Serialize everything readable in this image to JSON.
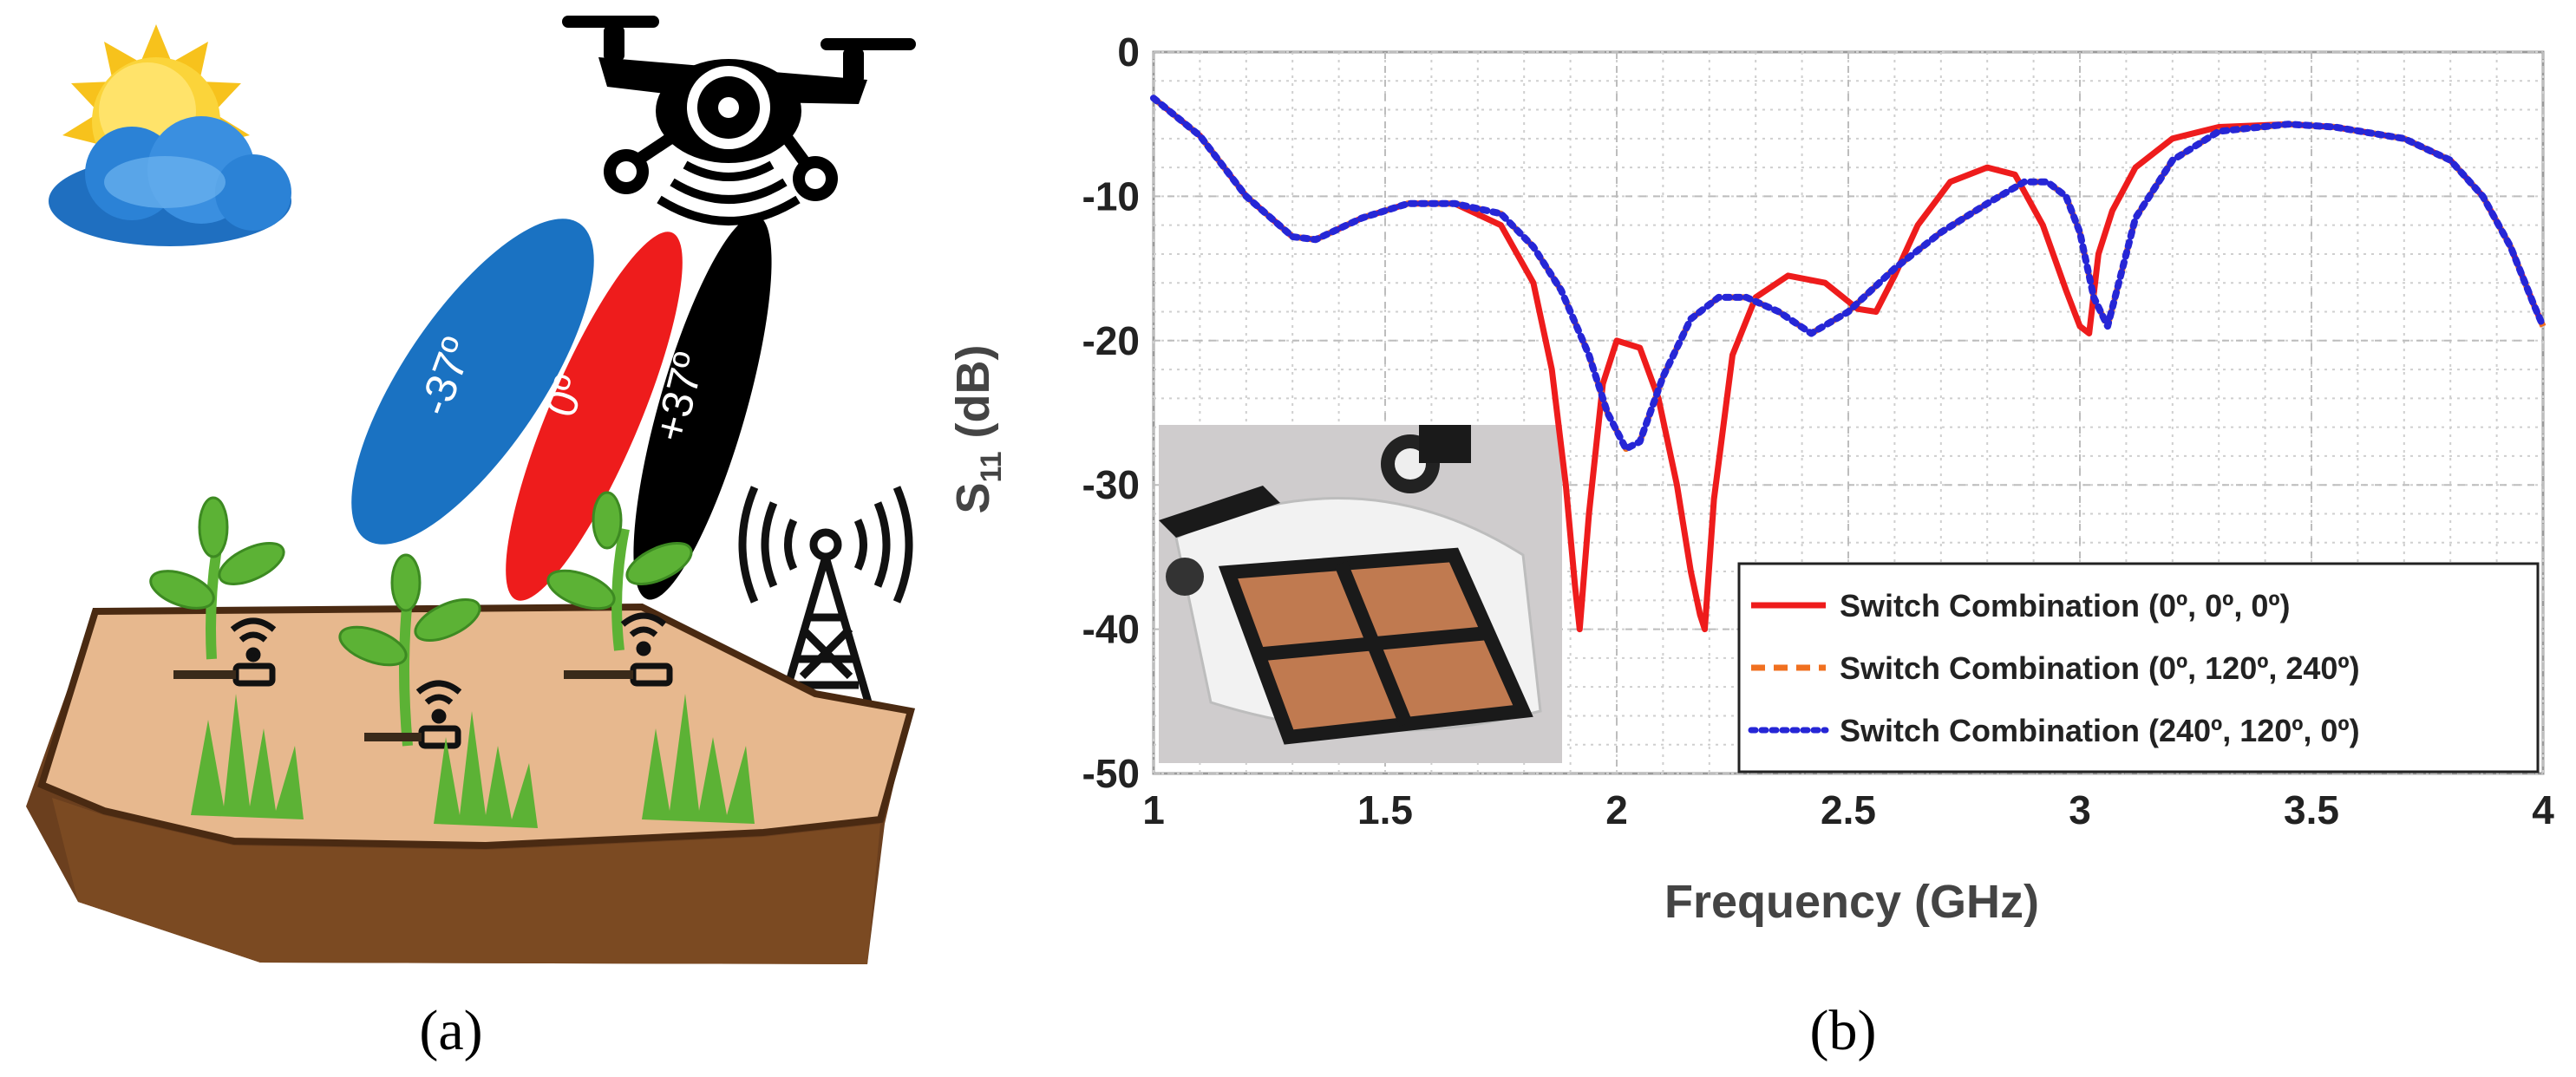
{
  "panels": {
    "a_label": "(a)",
    "b_label": "(b)"
  },
  "illustration": {
    "beams": [
      {
        "label": "-37º",
        "color": "#1a72c2"
      },
      {
        "label": "0º",
        "color": "#ee1c1c"
      },
      {
        "label": "+37º",
        "color": "#000000"
      }
    ],
    "icons": [
      "sun-icon",
      "cloud-icon",
      "drone-icon",
      "cell-tower-icon",
      "plant-icon",
      "wifi-sensor-icon",
      "grass-icon",
      "soil-icon"
    ]
  },
  "chart_data": {
    "type": "line",
    "xlabel": "Frequency (GHz)",
    "ylabel": "S11 (dB)",
    "ylabel_main": "S",
    "ylabel_sub": "11",
    "ylabel_unit": " (dB)",
    "xlim": [
      1,
      4
    ],
    "ylim": [
      -50,
      0
    ],
    "xticks": [
      "1",
      "1.5",
      "2",
      "2.5",
      "3",
      "3.5",
      "4"
    ],
    "yticks": [
      "0",
      "-10",
      "-20",
      "-30",
      "-40",
      "-50"
    ],
    "grid": true,
    "legend_position": "bottom-right",
    "inset": "photo of antenna array mounted on drone",
    "series": [
      {
        "name": "Switch Combination (0º, 0º, 0º)",
        "color": "#ee1c1c",
        "style": "solid",
        "x": [
          1.0,
          1.1,
          1.2,
          1.3,
          1.35,
          1.45,
          1.55,
          1.65,
          1.75,
          1.82,
          1.86,
          1.89,
          1.91,
          1.92,
          1.94,
          1.97,
          2.0,
          2.05,
          2.09,
          2.13,
          2.16,
          2.18,
          2.19,
          2.21,
          2.25,
          2.3,
          2.37,
          2.45,
          2.52,
          2.56,
          2.6,
          2.65,
          2.72,
          2.8,
          2.86,
          2.92,
          2.97,
          3.0,
          3.02,
          3.04,
          3.07,
          3.12,
          3.2,
          3.3,
          3.45,
          3.55,
          3.7,
          3.8,
          3.87,
          3.93,
          3.98,
          4.0
        ],
        "y": [
          -3.2,
          -5.8,
          -10.0,
          -12.8,
          -13.0,
          -11.5,
          -10.5,
          -10.5,
          -12.0,
          -16.0,
          -22.0,
          -30.0,
          -37.0,
          -40.0,
          -32.0,
          -23.0,
          -20.0,
          -20.5,
          -24.0,
          -30.0,
          -36.0,
          -39.0,
          -40.0,
          -31.0,
          -21.0,
          -17.0,
          -15.5,
          -16.0,
          -17.8,
          -18.0,
          -15.5,
          -12.0,
          -9.0,
          -8.0,
          -8.5,
          -12.0,
          -16.5,
          -19.0,
          -19.5,
          -14.0,
          -11.0,
          -8.0,
          -6.0,
          -5.2,
          -5.0,
          -5.2,
          -6.0,
          -7.5,
          -10.0,
          -13.5,
          -17.5,
          -19.0
        ]
      },
      {
        "name": "Switch Combination (0º, 120º, 240º)",
        "color": "#f07020",
        "style": "dashed",
        "x": [
          1.0,
          1.1,
          1.2,
          1.3,
          1.35,
          1.45,
          1.55,
          1.65,
          1.75,
          1.82,
          1.88,
          1.94,
          1.98,
          2.02,
          2.05,
          2.1,
          2.16,
          2.22,
          2.28,
          2.35,
          2.42,
          2.5,
          2.6,
          2.7,
          2.8,
          2.88,
          2.93,
          2.97,
          3.0,
          3.03,
          3.06,
          3.08,
          3.12,
          3.2,
          3.3,
          3.45,
          3.55,
          3.7,
          3.8,
          3.87,
          3.93,
          3.98,
          4.0
        ],
        "y": [
          -3.2,
          -5.8,
          -10.0,
          -12.8,
          -13.0,
          -11.5,
          -10.5,
          -10.5,
          -11.2,
          -13.5,
          -16.5,
          -21.0,
          -25.0,
          -27.5,
          -27.0,
          -22.5,
          -18.5,
          -17.0,
          -17.0,
          -18.0,
          -19.5,
          -18.0,
          -15.0,
          -12.5,
          -10.5,
          -9.0,
          -9.0,
          -10.0,
          -12.5,
          -17.0,
          -19.0,
          -16.5,
          -11.5,
          -7.5,
          -5.5,
          -5.0,
          -5.2,
          -6.0,
          -7.5,
          -10.0,
          -13.5,
          -17.5,
          -19.0
        ]
      },
      {
        "name": "Switch Combination (240º, 120º, 0º)",
        "color": "#2626d6",
        "style": "dotted",
        "x": [
          1.0,
          1.1,
          1.2,
          1.3,
          1.35,
          1.45,
          1.55,
          1.65,
          1.75,
          1.82,
          1.88,
          1.94,
          1.98,
          2.02,
          2.05,
          2.1,
          2.16,
          2.22,
          2.28,
          2.35,
          2.42,
          2.5,
          2.6,
          2.7,
          2.8,
          2.88,
          2.93,
          2.97,
          3.0,
          3.03,
          3.06,
          3.08,
          3.12,
          3.2,
          3.3,
          3.45,
          3.55,
          3.7,
          3.8,
          3.87,
          3.93,
          3.98,
          4.0
        ],
        "y": [
          -3.2,
          -5.8,
          -10.0,
          -12.8,
          -13.0,
          -11.5,
          -10.5,
          -10.5,
          -11.2,
          -13.5,
          -16.5,
          -21.0,
          -25.0,
          -27.5,
          -27.0,
          -22.5,
          -18.5,
          -17.0,
          -17.0,
          -18.0,
          -19.5,
          -18.0,
          -15.0,
          -12.5,
          -10.5,
          -9.0,
          -9.0,
          -10.0,
          -12.5,
          -17.0,
          -19.0,
          -16.5,
          -11.5,
          -7.5,
          -5.5,
          -5.0,
          -5.2,
          -6.0,
          -7.5,
          -10.0,
          -13.5,
          -17.5,
          -19.0
        ]
      }
    ]
  }
}
